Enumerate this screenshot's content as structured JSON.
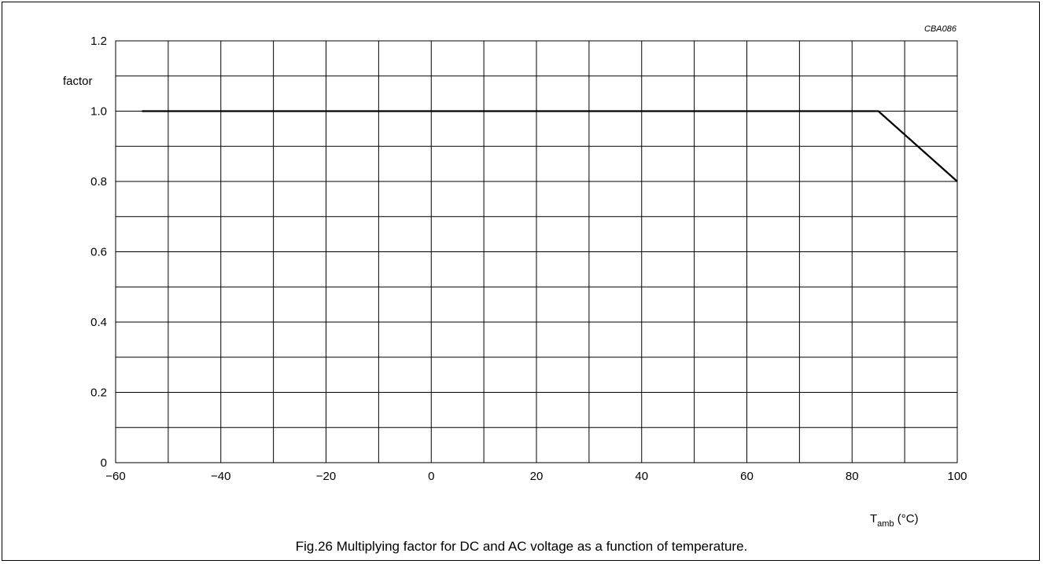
{
  "chart_data": {
    "type": "line",
    "code": "CBA086",
    "caption": "Fig.26  Multiplying factor for DC and AC voltage as a function of temperature.",
    "ylabel": "factor",
    "xlabel_main": "T",
    "xlabel_sub": "amb",
    "xlabel_unit": " (°C)",
    "xlim": [
      -60,
      100
    ],
    "ylim": [
      0,
      1.2
    ],
    "x_minor_step": 10,
    "y_minor_step": 0.1,
    "grid": true,
    "x_ticks": [
      {
        "v": -60,
        "label": "−60"
      },
      {
        "v": -40,
        "label": "−40"
      },
      {
        "v": -20,
        "label": "−20"
      },
      {
        "v": 0,
        "label": "0"
      },
      {
        "v": 20,
        "label": "20"
      },
      {
        "v": 40,
        "label": "40"
      },
      {
        "v": 60,
        "label": "60"
      },
      {
        "v": 80,
        "label": "80"
      },
      {
        "v": 100,
        "label": "100"
      }
    ],
    "y_ticks": [
      {
        "v": 0,
        "label": "0"
      },
      {
        "v": 0.2,
        "label": "0.2"
      },
      {
        "v": 0.4,
        "label": "0.4"
      },
      {
        "v": 0.6,
        "label": "0.6"
      },
      {
        "v": 0.8,
        "label": "0.8"
      },
      {
        "v": 1.0,
        "label": "1.0"
      },
      {
        "v": 1.2,
        "label": "1.2"
      }
    ],
    "series": [
      {
        "x": [
          -55,
          85,
          100
        ],
        "y": [
          1.0,
          1.0,
          0.8
        ]
      }
    ]
  }
}
